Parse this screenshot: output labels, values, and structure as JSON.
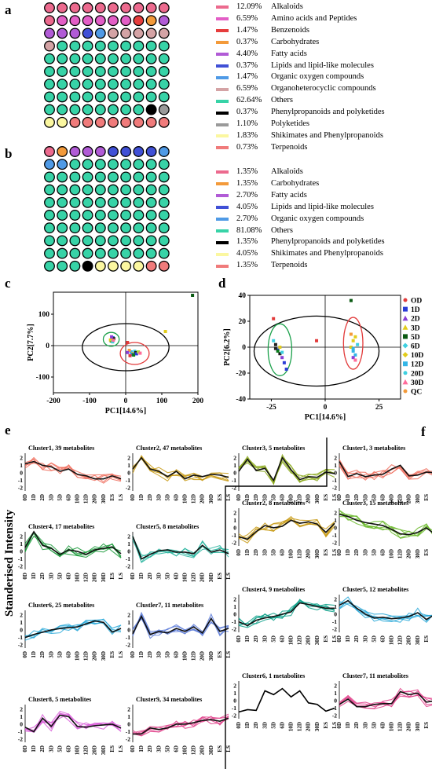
{
  "panel_letters": {
    "a": "a",
    "b": "b",
    "c": "c",
    "d": "d",
    "e": "e",
    "f": "f"
  },
  "colors": {
    "alkaloids": "#ec6a8e",
    "amino": "#e35ec6",
    "benzen": "#e63d3d",
    "carbo": "#f39a3a",
    "fatty": "#b15bd6",
    "lipids": "#4050d6",
    "orgox": "#4f9ae6",
    "orghet": "#d4a3a5",
    "others": "#37d3a7",
    "phenyl": "#000000",
    "polyket": "#9a9a9a",
    "shik": "#fbf7a0",
    "terp": "#f07b7b"
  },
  "chart_data": [
    {
      "type": "waffle",
      "id": "a",
      "legend": [
        {
          "pct": "12.09%",
          "label": "Alkaloids",
          "color": "#ec6a8e",
          "count": 11
        },
        {
          "pct": "6.59%",
          "label": "Amino acids and Peptides",
          "color": "#e35ec6",
          "count": 6
        },
        {
          "pct": "1.47%",
          "label": "Benzenoids",
          "color": "#e63d3d",
          "count": 1
        },
        {
          "pct": "0.37%",
          "label": "Carbohydrates",
          "color": "#f39a3a",
          "count": 1
        },
        {
          "pct": "4.40%",
          "label": "Fatty acids",
          "color": "#b15bd6",
          "count": 4
        },
        {
          "pct": "0.37%",
          "label": "Lipids and lipid-like molecules",
          "color": "#4050d6",
          "count": 1
        },
        {
          "pct": "1.47%",
          "label": "Organic oxygen compounds",
          "color": "#4f9ae6",
          "count": 1
        },
        {
          "pct": "6.59%",
          "label": "Organoheterocyclic compounds",
          "color": "#d4a3a5",
          "count": 6
        },
        {
          "pct": "62.64%",
          "label": "Others",
          "color": "#37d3a7",
          "count": 57
        },
        {
          "pct": "0.37%",
          "label": "Phenylpropanoids and polyketides",
          "color": "#000000",
          "count": 1
        },
        {
          "pct": "1.10%",
          "label": "Polyketides",
          "color": "#9a9a9a",
          "count": 1
        },
        {
          "pct": "1.83%",
          "label": "Shikimates and Phenylpropanoids",
          "color": "#fbf7a0",
          "count": 2
        },
        {
          "pct": "0.73%",
          "label": "Terpenoids",
          "color": "#f07b7b",
          "count": 1
        }
      ]
    },
    {
      "type": "waffle",
      "id": "b",
      "legend": [
        {
          "pct": "1.35%",
          "label": "Alkaloids",
          "color": "#ec6a8e",
          "count": 1
        },
        {
          "pct": "1.35%",
          "label": "Carbohydrates",
          "color": "#f39a3a",
          "count": 1
        },
        {
          "pct": "2.70%",
          "label": "Fatty acids",
          "color": "#b15bd6",
          "count": 3
        },
        {
          "pct": "4.05%",
          "label": "Lipids and lipid-like molecules",
          "color": "#4050d6",
          "count": 4
        },
        {
          "pct": "2.70%",
          "label": "Organic oxygen compounds",
          "color": "#4f9ae6",
          "count": 3
        },
        {
          "pct": "81.08%",
          "label": "Others",
          "color": "#37d3a7",
          "count": 81
        },
        {
          "pct": "1.35%",
          "label": "Phenylpropanoids and polyketides",
          "color": "#000000",
          "count": 1
        },
        {
          "pct": "4.05%",
          "label": "Shikimates and Phenylpropanoids",
          "color": "#fbf7a0",
          "count": 4
        },
        {
          "pct": "1.35%",
          "label": "Terpenoids",
          "color": "#f07b7b",
          "count": 2
        }
      ]
    },
    {
      "type": "scatter",
      "id": "c",
      "xlabel": "PC1[14.6%]",
      "ylabel": "PC2[7.7%]",
      "xlim": [
        -200,
        200
      ],
      "ylim": [
        -150,
        170
      ],
      "xticks": [
        "-200",
        "-100",
        "0",
        "100",
        "200"
      ],
      "xtick_values": [
        -200,
        -100,
        0,
        100,
        200
      ],
      "yticks": [
        "100",
        "0",
        "-100"
      ],
      "ytick_values": [
        100,
        0,
        -100
      ],
      "points": [
        {
          "x": -40,
          "y": 15,
          "c": "#0a7d1a"
        },
        {
          "x": -38,
          "y": 20,
          "c": "#2a3cd6"
        },
        {
          "x": -35,
          "y": 25,
          "c": "#1f6fd0"
        },
        {
          "x": -42,
          "y": 18,
          "c": "#e2cc1a"
        },
        {
          "x": -36,
          "y": 12,
          "c": "#3fd0e0"
        },
        {
          "x": -33,
          "y": 22,
          "c": "#202020"
        },
        {
          "x": -39,
          "y": 28,
          "c": "#8a3fd6"
        },
        {
          "x": -34,
          "y": 17,
          "c": "#ff6b9a"
        },
        {
          "x": 15,
          "y": -20,
          "c": "#33b5e6"
        },
        {
          "x": 20,
          "y": -25,
          "c": "#e2cc1a"
        },
        {
          "x": 25,
          "y": -18,
          "c": "#3fd0e0"
        },
        {
          "x": 18,
          "y": -28,
          "c": "#1f6fd0"
        },
        {
          "x": 28,
          "y": -22,
          "c": "#202020"
        },
        {
          "x": 22,
          "y": -30,
          "c": "#0a7d1a"
        },
        {
          "x": 10,
          "y": -15,
          "c": "#ff9a3a"
        },
        {
          "x": 30,
          "y": -26,
          "c": "#2a3cd6"
        },
        {
          "x": 35,
          "y": -20,
          "c": "#a8e03a"
        },
        {
          "x": 5,
          "y": -22,
          "c": "#8a3fd6"
        },
        {
          "x": 40,
          "y": -24,
          "c": "#ff6b9a"
        },
        {
          "x": 12,
          "y": -32,
          "c": "#e23a3a"
        },
        {
          "x": 110,
          "y": 45,
          "c": "#e2cc1a"
        },
        {
          "x": 185,
          "y": 160,
          "c": "#0a5a12"
        },
        {
          "x": 5,
          "y": 10,
          "c": "#e23a3a"
        }
      ]
    },
    {
      "type": "scatter",
      "id": "d",
      "xlabel": "PC1[14.6%]",
      "ylabel": "PC2[6.2%]",
      "xlim": [
        -35,
        35
      ],
      "ylim": [
        -40,
        40
      ],
      "xticks": [
        "-25",
        "0",
        "25"
      ],
      "xtick_values": [
        -25,
        0,
        25
      ],
      "yticks": [
        "40",
        "20",
        "0",
        "-20",
        "-40"
      ],
      "ytick_values": [
        40,
        20,
        0,
        -20,
        -40
      ],
      "legend": [
        {
          "label": "OD",
          "color": "#e23a3a",
          "shape": "circle"
        },
        {
          "label": "1D",
          "color": "#2a3cd6",
          "shape": "square"
        },
        {
          "label": "2D",
          "color": "#8a3fd6",
          "shape": "triangle"
        },
        {
          "label": "3D",
          "color": "#e2cc1a",
          "shape": "triangle"
        },
        {
          "label": "5D",
          "color": "#0a5a12",
          "shape": "square"
        },
        {
          "label": "6D",
          "color": "#3fd0e0",
          "shape": "diamond"
        },
        {
          "label": "10D",
          "color": "#e2cc1a",
          "shape": "diamond"
        },
        {
          "label": "12D",
          "color": "#33b5e6",
          "shape": "square"
        },
        {
          "label": "20D",
          "color": "#3fd0e0",
          "shape": "circle"
        },
        {
          "label": "30D",
          "color": "#ff6b9a",
          "shape": "triangle"
        },
        {
          "label": "QC",
          "color": "#f39a3a",
          "shape": "circle"
        }
      ],
      "points": [
        {
          "x": -23,
          "y": 2,
          "c": "#202020"
        },
        {
          "x": -22,
          "y": -2,
          "c": "#2a3cd6"
        },
        {
          "x": -24,
          "y": 5,
          "c": "#3fd0e0"
        },
        {
          "x": -21,
          "y": -5,
          "c": "#202020"
        },
        {
          "x": -20,
          "y": -8,
          "c": "#8a3fd6"
        },
        {
          "x": -19,
          "y": -12,
          "c": "#2a3cd6"
        },
        {
          "x": -22,
          "y": -3,
          "c": "#0a7d1a"
        },
        {
          "x": -18,
          "y": -17,
          "c": "#2a3cd6"
        },
        {
          "x": -21,
          "y": 0,
          "c": "#e2cc1a"
        },
        {
          "x": -23,
          "y": -1,
          "c": "#202020"
        },
        {
          "x": -24,
          "y": 22,
          "c": "#e23a3a"
        },
        {
          "x": -20,
          "y": -4,
          "c": "#3fd0e0"
        },
        {
          "x": 13,
          "y": -3,
          "c": "#33b5e6"
        },
        {
          "x": 14,
          "y": -6,
          "c": "#33b5e6"
        },
        {
          "x": 12,
          "y": 0,
          "c": "#e2cc1a"
        },
        {
          "x": 15,
          "y": 2,
          "c": "#3fd0e0"
        },
        {
          "x": 13,
          "y": 5,
          "c": "#e2cc1a"
        },
        {
          "x": 14,
          "y": 8,
          "c": "#e2cc1a"
        },
        {
          "x": 13,
          "y": -8,
          "c": "#8a3fd6"
        },
        {
          "x": 12,
          "y": 10,
          "c": "#f39a3a"
        },
        {
          "x": 14,
          "y": -10,
          "c": "#ff6b9a"
        },
        {
          "x": 13,
          "y": -1,
          "c": "#33b5e6"
        },
        {
          "x": 12,
          "y": 36,
          "c": "#0a5a12"
        },
        {
          "x": -4,
          "y": 5,
          "c": "#e23a3a"
        }
      ]
    },
    {
      "type": "line",
      "id": "e",
      "ylabel": "Standerised Intensity",
      "categories": [
        "0D",
        "1D",
        "2D",
        "3D",
        "5D",
        "6D",
        "10D",
        "12D",
        "20D",
        "30D",
        "ES",
        "LS"
      ],
      "clusters": [
        {
          "title": "Cluster1, 39 metabolites",
          "color": "#f0705f",
          "mean": [
            1.2,
            1.5,
            1.0,
            0.8,
            0.2,
            0.5,
            -0.2,
            -0.4,
            -0.8,
            -0.8,
            -0.4,
            -0.8
          ]
        },
        {
          "title": "Cluster2, 47 metabolites",
          "color": "#c89a14",
          "mean": [
            0.5,
            2.0,
            0.5,
            0.2,
            -0.5,
            0.2,
            -0.8,
            -0.3,
            -0.5,
            -0.2,
            -0.3,
            -0.6
          ]
        },
        {
          "title": "Cluster3, 5 metabolites",
          "color": "#8aa81a",
          "mean": [
            0.2,
            1.8,
            0.3,
            0.6,
            -1.0,
            2.0,
            0.4,
            -0.9,
            -0.5,
            -0.6,
            0.1,
            -0.1
          ]
        },
        {
          "title": "Cluster4, 17 metabolites",
          "color": "#1a9a3a",
          "mean": [
            0.5,
            2.6,
            0.8,
            0.4,
            -0.4,
            0.2,
            0.0,
            -0.4,
            0.2,
            0.4,
            0.6,
            -0.3
          ]
        },
        {
          "title": "Cluster5, 8 metabolites",
          "color": "#2ab5a0",
          "mean": [
            2.0,
            -1.0,
            -0.4,
            0.1,
            0.2,
            -0.1,
            -0.1,
            -0.3,
            0.8,
            -0.1,
            0.2,
            -0.3
          ]
        },
        {
          "title": "Cluster6, 25 metabolites",
          "color": "#28a8d8",
          "mean": [
            -1.0,
            -0.6,
            -0.3,
            0.0,
            0.2,
            0.3,
            0.4,
            0.8,
            1.2,
            1.0,
            -0.3,
            0.2
          ]
        },
        {
          "title": "Clustler7, 11 metabolites",
          "color": "#5a7ad8",
          "mean": [
            -0.5,
            1.8,
            -0.6,
            -0.2,
            -0.4,
            0.2,
            -0.2,
            0.4,
            -0.4,
            1.5,
            -0.2,
            0.2
          ]
        },
        {
          "title": "Cluster8, 5 metabolites",
          "color": "#d85ad8",
          "mean": [
            -0.4,
            -1.0,
            0.8,
            -0.3,
            1.2,
            1.0,
            -0.3,
            -0.4,
            -0.2,
            -0.1,
            0.0,
            -0.5
          ]
        },
        {
          "title": "Cluster9, 34 metabolites",
          "color": "#e0408a",
          "mean": [
            -1.3,
            -1.3,
            -0.5,
            -0.7,
            -0.5,
            0.0,
            0.0,
            0.2,
            0.5,
            0.6,
            0.4,
            0.8
          ]
        }
      ]
    },
    {
      "type": "line",
      "id": "f",
      "categories": [
        "0D",
        "1D",
        "2D",
        "3D",
        "5D",
        "6D",
        "10D",
        "12D",
        "20D",
        "30D",
        "ES",
        "LS"
      ],
      "clusters": [
        {
          "title": "Cluster1, 3 metabolites",
          "color": "#f0705f",
          "mean": [
            1.5,
            -0.5,
            -0.1,
            -0.5,
            -0.3,
            -0.2,
            0.5,
            1.0,
            -0.4,
            -0.3,
            0.1,
            0.0
          ]
        },
        {
          "title": "Cluster2, 8 metabolites",
          "color": "#c89a14",
          "mean": [
            -1.2,
            -1.5,
            -0.5,
            0.3,
            0.0,
            0.2,
            1.0,
            0.6,
            0.8,
            0.5,
            -0.6,
            0.6
          ]
        },
        {
          "title": "Cluster3, 15 metabolites",
          "color": "#6ab82a",
          "mean": [
            1.8,
            1.5,
            1.0,
            0.7,
            0.5,
            0.3,
            -0.2,
            -0.8,
            -0.9,
            -0.6,
            0.0,
            -0.9
          ]
        },
        {
          "title": "Cluster4, 9 metabolites",
          "color": "#0aa088",
          "mean": [
            -1.0,
            -1.5,
            -0.8,
            -0.5,
            -0.3,
            0.0,
            0.3,
            1.5,
            1.3,
            1.0,
            0.8,
            0.8
          ]
        },
        {
          "title": "Cluster5, 12 metabolites",
          "color": "#28a8d8",
          "mean": [
            1.2,
            1.8,
            0.8,
            0.0,
            -0.5,
            -0.4,
            -0.6,
            -0.5,
            -0.3,
            0.2,
            -0.7,
            0.0
          ]
        },
        {
          "title": "Cluster6, 1 metabolites",
          "color": "#000000",
          "mean": [
            -1.5,
            -1.2,
            -1.3,
            1.3,
            0.8,
            1.6,
            0.5,
            1.3,
            -0.3,
            -0.5,
            -1.4,
            -1.0
          ]
        },
        {
          "title": "Cluster7, 11 metabolites",
          "color": "#e0408a",
          "mean": [
            -0.5,
            0.2,
            -0.8,
            -0.8,
            -0.5,
            -0.4,
            -0.4,
            1.2,
            0.8,
            1.0,
            -0.2,
            0.0
          ]
        }
      ]
    }
  ]
}
